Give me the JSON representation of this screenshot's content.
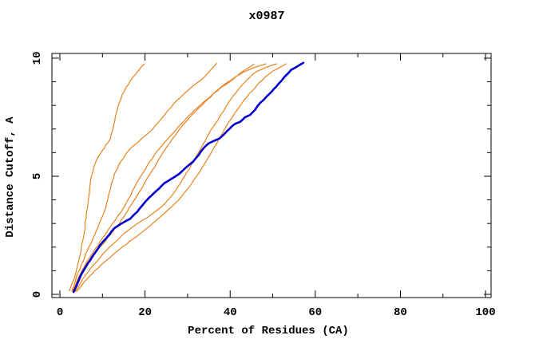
{
  "window": {
    "background": "#ffffff"
  },
  "chart_data": {
    "type": "line",
    "title": "x0987",
    "xlabel": "Percent of Residues (CA)",
    "ylabel": "Distance Cutoff, A",
    "xlim": [
      -1.88,
      101.31
    ],
    "ylim": [
      -0.135,
      10.2
    ],
    "x_major_ticks": [
      0,
      20,
      40,
      60,
      80,
      100
    ],
    "x_minor_ticks": [
      10,
      30,
      50,
      70,
      90
    ],
    "y_major_ticks": [
      0,
      5,
      10
    ],
    "y_minor_ticks": [
      1,
      2,
      3,
      4,
      6,
      7,
      8,
      9
    ],
    "grid": false,
    "legend_position": "none",
    "colors": {
      "axis": "#000000",
      "comparison": "#E8821E",
      "query": "#0000CD"
    },
    "series": [
      {
        "name": "comparison-1",
        "color": "#E8821E",
        "width": 1.2,
        "points": [
          [
            2.2,
            0.15
          ],
          [
            3.2,
            0.6
          ],
          [
            4.0,
            1.1
          ],
          [
            4.8,
            1.7
          ],
          [
            5.4,
            2.3
          ],
          [
            5.9,
            2.9
          ],
          [
            6.2,
            3.4
          ],
          [
            6.7,
            4.0
          ],
          [
            7.0,
            4.5
          ],
          [
            7.4,
            5.0
          ],
          [
            8.0,
            5.4
          ],
          [
            8.8,
            5.75
          ],
          [
            9.8,
            6.05
          ],
          [
            10.9,
            6.35
          ],
          [
            11.9,
            6.6
          ],
          [
            12.4,
            6.95
          ],
          [
            12.9,
            7.35
          ],
          [
            13.4,
            7.75
          ],
          [
            13.9,
            8.1
          ],
          [
            14.6,
            8.45
          ],
          [
            15.5,
            8.75
          ],
          [
            16.6,
            9.05
          ],
          [
            17.7,
            9.3
          ],
          [
            18.8,
            9.55
          ],
          [
            19.8,
            9.75
          ]
        ]
      },
      {
        "name": "comparison-2",
        "color": "#E8821E",
        "width": 1.2,
        "points": [
          [
            2.8,
            0.15
          ],
          [
            3.8,
            0.7
          ],
          [
            5.0,
            1.25
          ],
          [
            6.3,
            1.8
          ],
          [
            7.7,
            2.35
          ],
          [
            9.0,
            2.85
          ],
          [
            10.0,
            3.3
          ],
          [
            10.9,
            3.8
          ],
          [
            11.6,
            4.3
          ],
          [
            12.3,
            4.8
          ],
          [
            13.1,
            5.2
          ],
          [
            14.2,
            5.6
          ],
          [
            15.5,
            5.95
          ],
          [
            17.0,
            6.25
          ],
          [
            18.7,
            6.5
          ],
          [
            20.3,
            6.75
          ],
          [
            21.8,
            7.0
          ],
          [
            23.2,
            7.3
          ],
          [
            24.6,
            7.6
          ],
          [
            26.0,
            7.9
          ],
          [
            27.4,
            8.2
          ],
          [
            28.9,
            8.45
          ],
          [
            30.5,
            8.7
          ],
          [
            32.2,
            8.95
          ],
          [
            33.9,
            9.2
          ],
          [
            35.4,
            9.5
          ],
          [
            36.8,
            9.78
          ]
        ]
      },
      {
        "name": "comparison-3",
        "color": "#E8821E",
        "width": 1.2,
        "points": [
          [
            3.0,
            0.15
          ],
          [
            4.3,
            0.7
          ],
          [
            5.8,
            1.2
          ],
          [
            7.5,
            1.7
          ],
          [
            9.3,
            2.2
          ],
          [
            11.2,
            2.7
          ],
          [
            13.2,
            3.2
          ],
          [
            14.9,
            3.65
          ],
          [
            16.3,
            4.1
          ],
          [
            17.6,
            4.55
          ],
          [
            19.0,
            5.0
          ],
          [
            20.5,
            5.45
          ],
          [
            22.2,
            5.9
          ],
          [
            24.0,
            6.3
          ],
          [
            25.9,
            6.7
          ],
          [
            27.8,
            7.1
          ],
          [
            29.7,
            7.45
          ],
          [
            31.6,
            7.8
          ],
          [
            33.5,
            8.1
          ],
          [
            35.5,
            8.4
          ],
          [
            37.5,
            8.7
          ],
          [
            39.5,
            8.95
          ],
          [
            41.3,
            9.2
          ],
          [
            43.0,
            9.45
          ],
          [
            44.4,
            9.6
          ],
          [
            45.6,
            9.75
          ]
        ]
      },
      {
        "name": "comparison-4",
        "color": "#E8821E",
        "width": 1.2,
        "points": [
          [
            3.3,
            0.15
          ],
          [
            5.0,
            0.8
          ],
          [
            7.0,
            1.4
          ],
          [
            9.4,
            2.0
          ],
          [
            12.0,
            2.55
          ],
          [
            14.0,
            3.0
          ],
          [
            15.4,
            3.4
          ],
          [
            16.8,
            3.8
          ],
          [
            18.2,
            4.2
          ],
          [
            19.7,
            4.65
          ],
          [
            21.2,
            5.1
          ],
          [
            22.7,
            5.55
          ],
          [
            24.2,
            6.0
          ],
          [
            25.8,
            6.4
          ],
          [
            27.4,
            6.8
          ],
          [
            29.0,
            7.2
          ],
          [
            30.8,
            7.55
          ],
          [
            32.7,
            7.9
          ],
          [
            34.7,
            8.25
          ],
          [
            36.7,
            8.6
          ],
          [
            38.7,
            8.9
          ],
          [
            40.8,
            9.15
          ],
          [
            43.0,
            9.4
          ],
          [
            45.6,
            9.6
          ],
          [
            48.4,
            9.76
          ]
        ]
      },
      {
        "name": "comparison-5",
        "color": "#E8821E",
        "width": 1.2,
        "points": [
          [
            3.6,
            0.12
          ],
          [
            5.2,
            0.6
          ],
          [
            7.2,
            1.1
          ],
          [
            9.6,
            1.6
          ],
          [
            12.3,
            2.1
          ],
          [
            15.2,
            2.6
          ],
          [
            18.2,
            3.0
          ],
          [
            21.3,
            3.35
          ],
          [
            23.8,
            3.7
          ],
          [
            25.9,
            4.1
          ],
          [
            27.7,
            4.55
          ],
          [
            29.3,
            5.0
          ],
          [
            30.8,
            5.45
          ],
          [
            32.2,
            5.9
          ],
          [
            33.6,
            6.35
          ],
          [
            35.0,
            6.8
          ],
          [
            36.4,
            7.2
          ],
          [
            37.8,
            7.6
          ],
          [
            39.2,
            8.0
          ],
          [
            40.7,
            8.4
          ],
          [
            42.3,
            8.75
          ],
          [
            44.0,
            9.1
          ],
          [
            45.9,
            9.4
          ],
          [
            48.2,
            9.6
          ],
          [
            50.9,
            9.76
          ]
        ]
      },
      {
        "name": "comparison-6",
        "color": "#E8821E",
        "width": 1.2,
        "points": [
          [
            3.9,
            0.12
          ],
          [
            5.8,
            0.55
          ],
          [
            8.2,
            1.0
          ],
          [
            11.0,
            1.45
          ],
          [
            14.0,
            1.9
          ],
          [
            17.2,
            2.35
          ],
          [
            20.4,
            2.8
          ],
          [
            23.4,
            3.25
          ],
          [
            26.2,
            3.7
          ],
          [
            28.6,
            4.15
          ],
          [
            30.6,
            4.6
          ],
          [
            32.3,
            5.05
          ],
          [
            33.9,
            5.5
          ],
          [
            35.4,
            5.95
          ],
          [
            36.9,
            6.4
          ],
          [
            38.3,
            6.85
          ],
          [
            39.7,
            7.3
          ],
          [
            41.2,
            7.7
          ],
          [
            42.8,
            8.1
          ],
          [
            44.5,
            8.5
          ],
          [
            46.3,
            8.85
          ],
          [
            48.2,
            9.2
          ],
          [
            50.0,
            9.45
          ],
          [
            51.7,
            9.62
          ],
          [
            53.2,
            9.76
          ]
        ]
      },
      {
        "name": "query-structure",
        "color": "#0000CD",
        "width": 2.6,
        "points": [
          [
            3.2,
            0.1
          ],
          [
            4.2,
            0.5
          ],
          [
            5.2,
            0.9
          ],
          [
            6.5,
            1.3
          ],
          [
            8.0,
            1.7
          ],
          [
            9.5,
            2.1
          ],
          [
            11.0,
            2.4
          ],
          [
            12.8,
            2.8
          ],
          [
            14.5,
            3.0
          ],
          [
            16.5,
            3.2
          ],
          [
            18.2,
            3.5
          ],
          [
            19.5,
            3.8
          ],
          [
            21.0,
            4.1
          ],
          [
            22.8,
            4.4
          ],
          [
            24.5,
            4.7
          ],
          [
            26.3,
            4.9
          ],
          [
            28.0,
            5.1
          ],
          [
            29.8,
            5.4
          ],
          [
            31.2,
            5.6
          ],
          [
            32.6,
            5.9
          ],
          [
            33.8,
            6.2
          ],
          [
            35.0,
            6.4
          ],
          [
            36.2,
            6.5
          ],
          [
            37.5,
            6.6
          ],
          [
            38.7,
            6.8
          ],
          [
            39.8,
            7.0
          ],
          [
            41.0,
            7.2
          ],
          [
            42.3,
            7.3
          ],
          [
            43.5,
            7.5
          ],
          [
            44.7,
            7.6
          ],
          [
            45.8,
            7.8
          ],
          [
            47.0,
            8.1
          ],
          [
            48.2,
            8.3
          ],
          [
            49.3,
            8.5
          ],
          [
            50.3,
            8.7
          ],
          [
            51.3,
            8.9
          ],
          [
            52.3,
            9.1
          ],
          [
            53.3,
            9.3
          ],
          [
            54.3,
            9.5
          ],
          [
            55.3,
            9.6
          ],
          [
            56.2,
            9.7
          ],
          [
            57.2,
            9.8
          ]
        ]
      }
    ]
  }
}
